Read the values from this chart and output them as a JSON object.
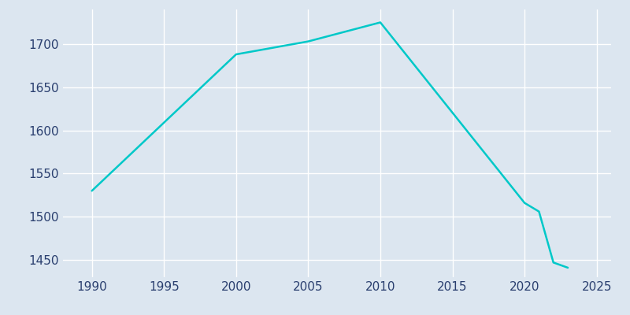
{
  "years": [
    1990,
    2000,
    2005,
    2010,
    2020,
    2021,
    2022,
    2023
  ],
  "population": [
    1530,
    1688,
    1703,
    1725,
    1516,
    1506,
    1447,
    1441
  ],
  "line_color": "#00c8c8",
  "line_width": 1.8,
  "bg_color": "#dce6f0",
  "plot_bg_color": "#dce6f0",
  "grid_color": "#ffffff",
  "text_color": "#2a3f6f",
  "tick_fontsize": 11,
  "xlim": [
    1988,
    2026
  ],
  "ylim": [
    1430,
    1740
  ],
  "yticks": [
    1450,
    1500,
    1550,
    1600,
    1650,
    1700
  ],
  "xticks": [
    1990,
    1995,
    2000,
    2005,
    2010,
    2015,
    2020,
    2025
  ]
}
